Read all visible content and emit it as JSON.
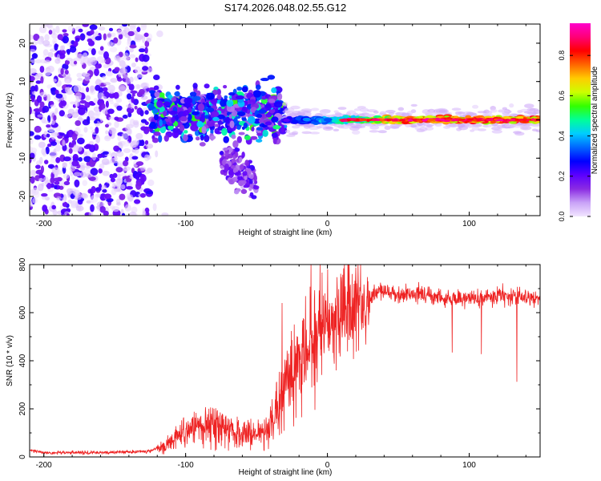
{
  "title": "S174.2026.048.02.55.G12",
  "chart_data": [
    {
      "type": "heatmap",
      "xlabel": "Height of straight line (km)",
      "ylabel": "Frequency (Hz)",
      "xlim": [
        -210,
        150
      ],
      "ylim": [
        -25,
        25
      ],
      "xticks": [
        -200,
        -100,
        0,
        100
      ],
      "yticks": [
        -20,
        -10,
        0,
        10,
        20
      ],
      "colorbar": {
        "label": "Normalized spectral amplitude",
        "range": [
          0.0,
          0.96
        ],
        "ticks": [
          0.0,
          0.2,
          0.4,
          0.6,
          0.8
        ],
        "tick_labels": [
          "0.0",
          "0.2",
          "0.4",
          "0.6",
          "0.8"
        ],
        "colors": [
          "#f2e6ff",
          "#c9a2f7",
          "#8a2be2",
          "#5b00ff",
          "#0000ff",
          "#0066ff",
          "#00ccff",
          "#00ff99",
          "#33ff00",
          "#ccff00",
          "#ffcc00",
          "#ff6600",
          "#ff0000",
          "#ff0077",
          "#ff00cc"
        ]
      },
      "regions": [
        {
          "name": "noise",
          "x": [
            -210,
            -125
          ],
          "freq_spread": 25,
          "typical_amplitude": 0.1
        },
        {
          "name": "transition",
          "x": [
            -125,
            -30
          ],
          "freq_center": 2,
          "freq_spread": 7,
          "typical_amplitude": 0.3
        },
        {
          "name": "tail",
          "x": [
            -75,
            -50
          ],
          "freq_center": -10,
          "freq_spread": 6,
          "typical_amplitude": 0.12
        },
        {
          "name": "clean_signal",
          "x": [
            -30,
            150
          ],
          "freq_center": 0,
          "freq_spread": 1.5,
          "typical_amplitude": 0.65
        }
      ]
    },
    {
      "type": "line",
      "xlabel": "Height of straight line (km)",
      "ylabel": "SNR (10 * v/v)",
      "xlim": [
        -210,
        150
      ],
      "ylim": [
        0,
        800
      ],
      "xticks": [
        -200,
        -100,
        0,
        100
      ],
      "yticks": [
        0,
        200,
        400,
        600,
        800
      ],
      "series": [
        {
          "name": "SNR",
          "color": "#ee2222",
          "points": [
            [
              -210,
              30
            ],
            [
              -200,
              18
            ],
            [
              -180,
              18
            ],
            [
              -160,
              18
            ],
            [
              -140,
              20
            ],
            [
              -125,
              25
            ],
            [
              -115,
              45
            ],
            [
              -105,
              90
            ],
            [
              -95,
              110
            ],
            [
              -85,
              130
            ],
            [
              -75,
              125
            ],
            [
              -65,
              105
            ],
            [
              -55,
              90
            ],
            [
              -48,
              85
            ],
            [
              -42,
              115
            ],
            [
              -38,
              165
            ],
            [
              -34,
              230
            ],
            [
              -30,
              300
            ],
            [
              -26,
              345
            ],
            [
              -22,
              380
            ],
            [
              -18,
              420
            ],
            [
              -14,
              470
            ],
            [
              -10,
              500
            ],
            [
              -6,
              520
            ],
            [
              -2,
              540
            ],
            [
              2,
              560
            ],
            [
              6,
              585
            ],
            [
              10,
              600
            ],
            [
              14,
              615
            ],
            [
              18,
              632
            ],
            [
              22,
              645
            ],
            [
              26,
              655
            ],
            [
              30,
              662
            ],
            [
              35,
              685
            ],
            [
              40,
              690
            ],
            [
              50,
              670
            ],
            [
              60,
              682
            ],
            [
              70,
              672
            ],
            [
              80,
              665
            ],
            [
              90,
              660
            ],
            [
              100,
              658
            ],
            [
              110,
              662
            ],
            [
              120,
              672
            ],
            [
              130,
              668
            ],
            [
              140,
              665
            ],
            [
              150,
              658
            ]
          ]
        }
      ]
    }
  ]
}
